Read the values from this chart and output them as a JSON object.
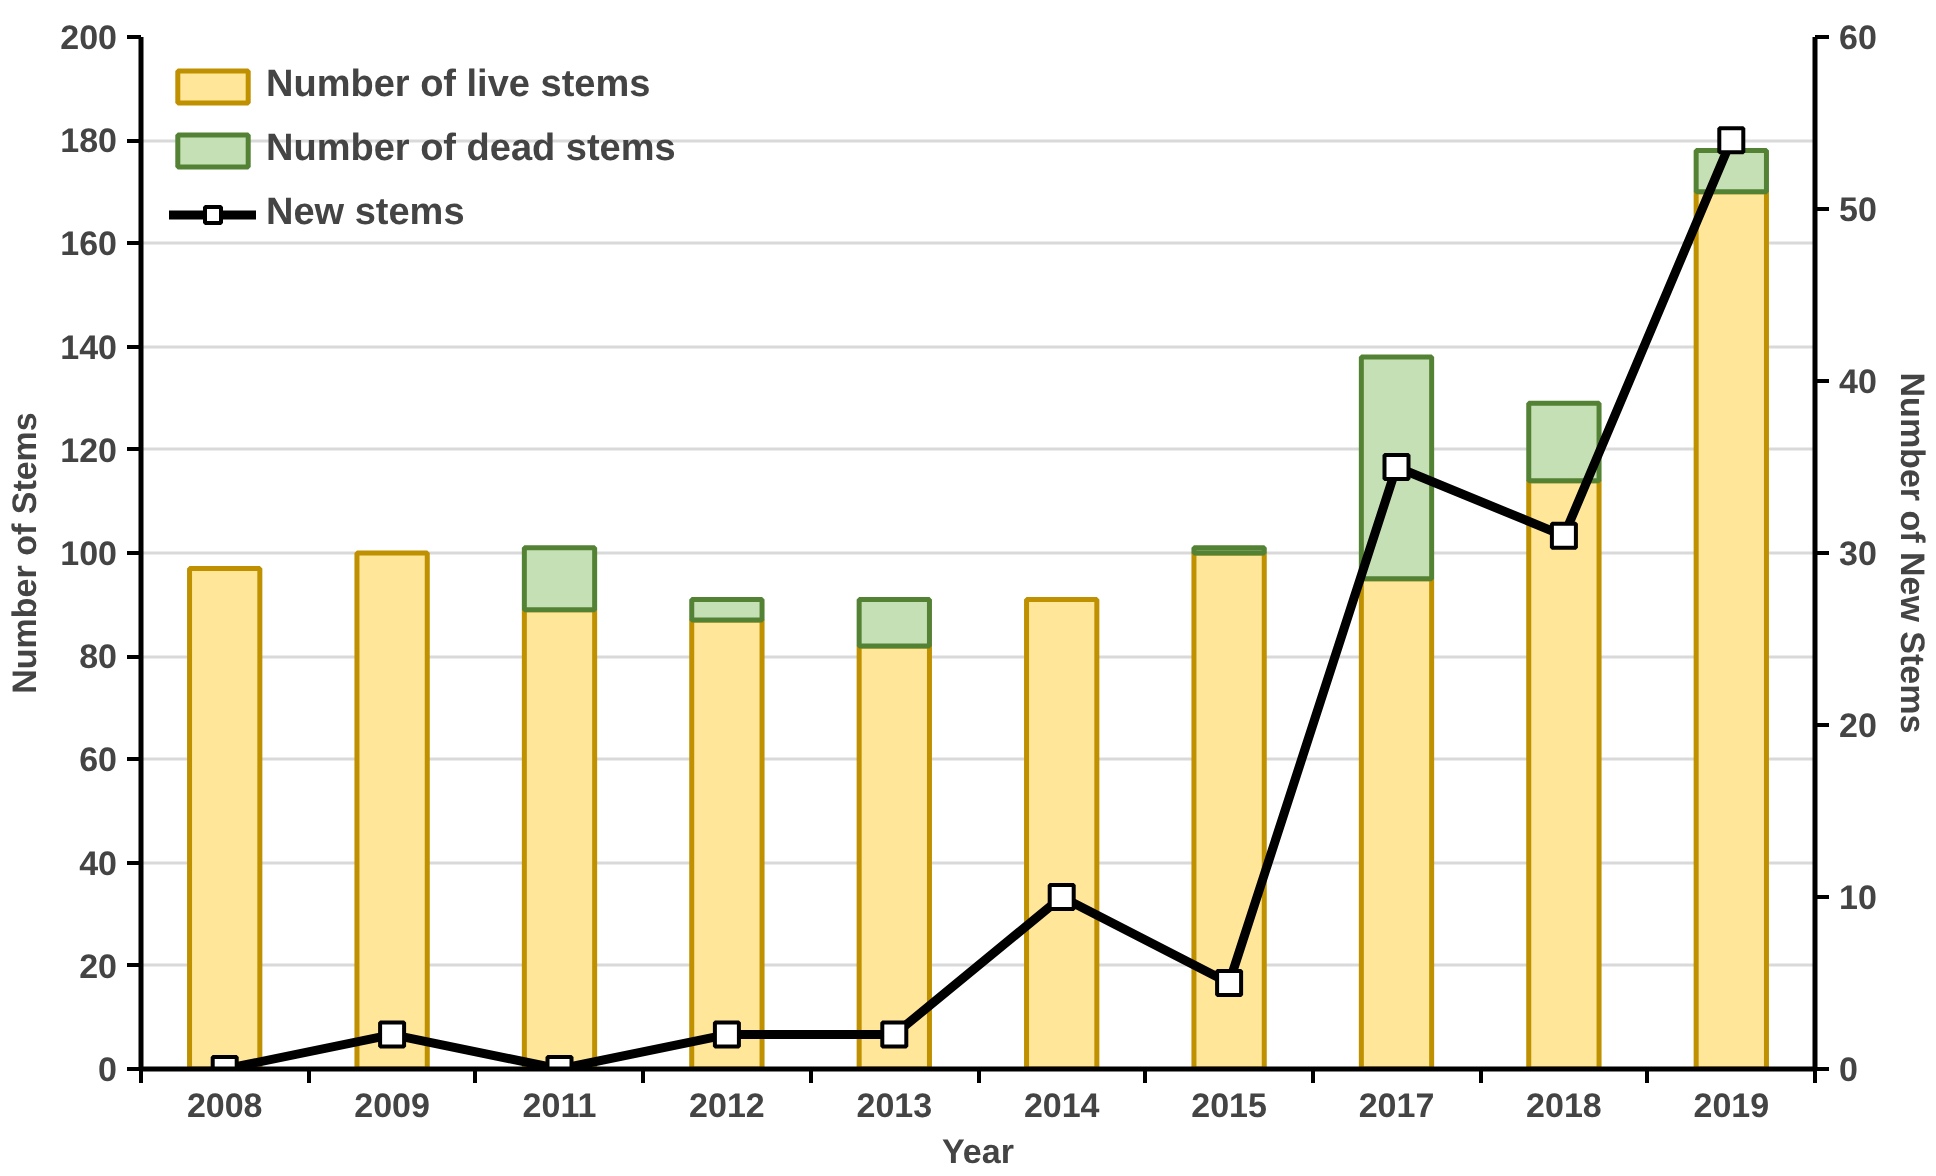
{
  "chart_data": {
    "type": "bar",
    "stacked": true,
    "xlabel": "Year",
    "ylabel": "Number of Stems",
    "y2label": "Number of New Stems",
    "categories": [
      "2008",
      "2009",
      "2011",
      "2012",
      "2013",
      "2014",
      "2015",
      "2017",
      "2018",
      "2019"
    ],
    "series": [
      {
        "name": "Number of live stems",
        "color": "#ffe699",
        "values": [
          97,
          100,
          89,
          87,
          82,
          91,
          100,
          95,
          114,
          170
        ]
      },
      {
        "name": "Number of dead stems",
        "color": "#c5e0b4",
        "values": [
          0,
          0,
          12,
          4,
          9,
          0,
          1,
          43,
          15,
          8
        ]
      },
      {
        "name": "New stems",
        "type": "line",
        "axis": "y2",
        "color": "#000000",
        "marker": "square",
        "values": [
          0,
          2,
          0,
          2,
          2,
          10,
          5,
          35,
          31,
          54
        ]
      }
    ],
    "ylim": [
      0,
      200
    ],
    "yticks": [
      0,
      20,
      40,
      60,
      80,
      100,
      120,
      140,
      160,
      180,
      200
    ],
    "y2lim": [
      0,
      60
    ],
    "y2ticks": [
      0,
      10,
      20,
      30,
      40,
      50,
      60
    ],
    "grid": "y",
    "legend": "top left"
  }
}
